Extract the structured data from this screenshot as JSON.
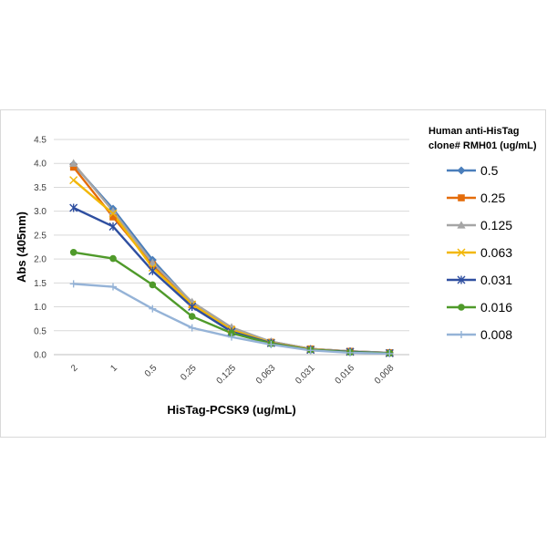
{
  "chart_data": {
    "type": "line",
    "title": "",
    "xlabel": "HisTag-PCSK9 (ug/mL)",
    "ylabel": "Abs (405nm)",
    "categories": [
      "2",
      "1",
      "0.5",
      "0.25",
      "0.125",
      "0.063",
      "0.031",
      "0.016",
      "0.008"
    ],
    "ylim": [
      0,
      4.5
    ],
    "yticks": [
      "0.0",
      "0.5",
      "1.0",
      "1.5",
      "2.0",
      "2.5",
      "3.0",
      "3.5",
      "4.0",
      "4.5"
    ],
    "grid": true,
    "legend": {
      "position": "right",
      "title_lines": [
        "Human anti-HisTag",
        "clone# RMH01 (ug/mL)"
      ]
    },
    "series": [
      {
        "name": "0.5",
        "color": "#4a7ebb",
        "marker": "diamond",
        "values": [
          3.98,
          3.05,
          1.98,
          1.08,
          0.55,
          0.27,
          0.12,
          0.07,
          0.04
        ]
      },
      {
        "name": "0.25",
        "color": "#e46c0a",
        "marker": "square",
        "values": [
          3.92,
          2.88,
          1.88,
          1.05,
          0.53,
          0.26,
          0.12,
          0.07,
          0.04
        ]
      },
      {
        "name": "0.125",
        "color": "#a5a5a5",
        "marker": "triangle",
        "values": [
          4.0,
          3.0,
          1.92,
          1.1,
          0.57,
          0.27,
          0.12,
          0.07,
          0.04
        ]
      },
      {
        "name": "0.063",
        "color": "#f2b707",
        "marker": "x",
        "values": [
          3.65,
          2.95,
          1.82,
          1.05,
          0.52,
          0.25,
          0.11,
          0.06,
          0.03
        ]
      },
      {
        "name": "0.031",
        "color": "#2f4fa0",
        "marker": "star",
        "values": [
          3.07,
          2.68,
          1.75,
          1.0,
          0.48,
          0.24,
          0.1,
          0.06,
          0.03
        ]
      },
      {
        "name": "0.016",
        "color": "#4f9a2a",
        "marker": "circle",
        "values": [
          2.14,
          2.01,
          1.46,
          0.8,
          0.45,
          0.23,
          0.1,
          0.05,
          0.03
        ]
      },
      {
        "name": "0.008",
        "color": "#95b3d7",
        "marker": "plus",
        "values": [
          1.48,
          1.42,
          0.96,
          0.56,
          0.37,
          0.21,
          0.09,
          0.04,
          0.02
        ]
      }
    ]
  }
}
